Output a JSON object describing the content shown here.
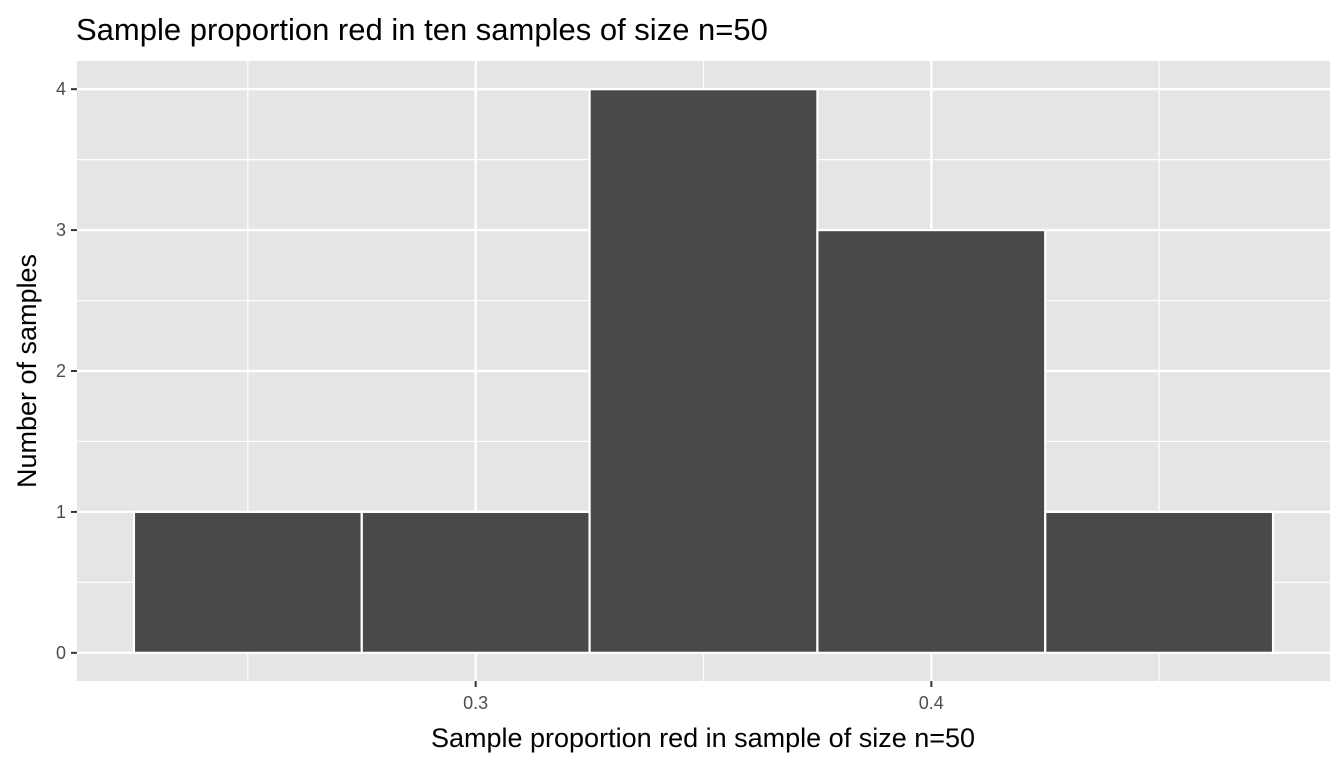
{
  "chart_data": {
    "type": "bar",
    "title": "Sample proportion red in ten samples of size n=50",
    "xlabel": "Sample proportion red in sample of size n=50",
    "ylabel": "Number of samples",
    "bins": [
      {
        "start": 0.225,
        "end": 0.275,
        "count": 1
      },
      {
        "start": 0.275,
        "end": 0.325,
        "count": 1
      },
      {
        "start": 0.325,
        "end": 0.375,
        "count": 4
      },
      {
        "start": 0.375,
        "end": 0.425,
        "count": 3
      },
      {
        "start": 0.425,
        "end": 0.475,
        "count": 1
      }
    ],
    "xlim": [
      0.2125,
      0.4875
    ],
    "ylim": [
      -0.2,
      4.2
    ],
    "x_ticks": [
      0.3,
      0.4
    ],
    "x_tick_labels": [
      "0.3",
      "0.4"
    ],
    "y_ticks": [
      0,
      1,
      2,
      3,
      4
    ],
    "y_tick_labels": [
      "0",
      "1",
      "2",
      "3",
      "4"
    ],
    "grid": true,
    "colors": {
      "bar_fill": "#494949",
      "bar_outline": "#ffffff",
      "panel_background": "#e5e5e5",
      "grid": "#ffffff"
    }
  }
}
